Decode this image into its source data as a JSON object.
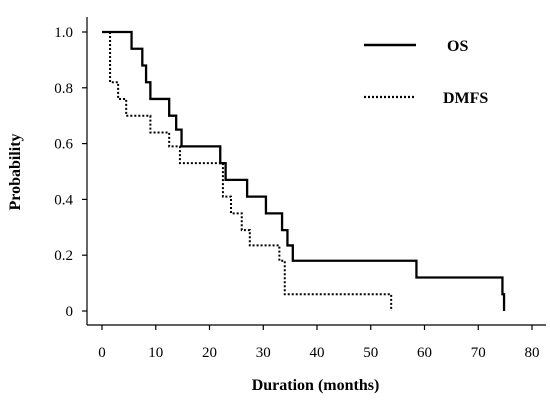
{
  "chart_data": {
    "type": "line",
    "xlabel": "Duration (months)",
    "ylabel": "Probability",
    "xlim": [
      0,
      80
    ],
    "ylim": [
      0,
      1.0
    ],
    "x_ticks": [
      0,
      10,
      20,
      30,
      40,
      50,
      60,
      70,
      80
    ],
    "x_tick_labels": [
      "0",
      "10",
      "20",
      "30",
      "40",
      "50",
      "60",
      "70",
      "80"
    ],
    "y_ticks": [
      0,
      0.2,
      0.4,
      0.6,
      0.8,
      1.0
    ],
    "y_tick_labels": [
      "0",
      "0.2",
      "0.4",
      "0.6",
      "0.8",
      "1.0"
    ],
    "grid": false,
    "legend_position": "top-right",
    "series": [
      {
        "name": "OS",
        "style": "solid",
        "color": "#000000",
        "x": [
          0,
          5.5,
          7.5,
          8.2,
          9.0,
          12.5,
          13.8,
          14.8,
          22.0,
          23.0,
          27.0,
          30.5,
          33.5,
          34.5,
          35.5,
          58.5,
          74.5,
          74.8
        ],
        "y": [
          1.0,
          0.94,
          0.88,
          0.82,
          0.76,
          0.7,
          0.65,
          0.59,
          0.53,
          0.47,
          0.41,
          0.35,
          0.29,
          0.235,
          0.18,
          0.12,
          0.06,
          0.0
        ]
      },
      {
        "name": "DMFS",
        "style": "dotted",
        "color": "#000000",
        "x": [
          0,
          1.5,
          3.0,
          4.5,
          9.0,
          12.5,
          14.5,
          22.5,
          24.0,
          26.0,
          27.5,
          33.0,
          34.0,
          53.8
        ],
        "y": [
          1.0,
          0.82,
          0.76,
          0.7,
          0.64,
          0.59,
          0.53,
          0.41,
          0.35,
          0.29,
          0.235,
          0.18,
          0.06,
          0.0
        ]
      }
    ]
  }
}
